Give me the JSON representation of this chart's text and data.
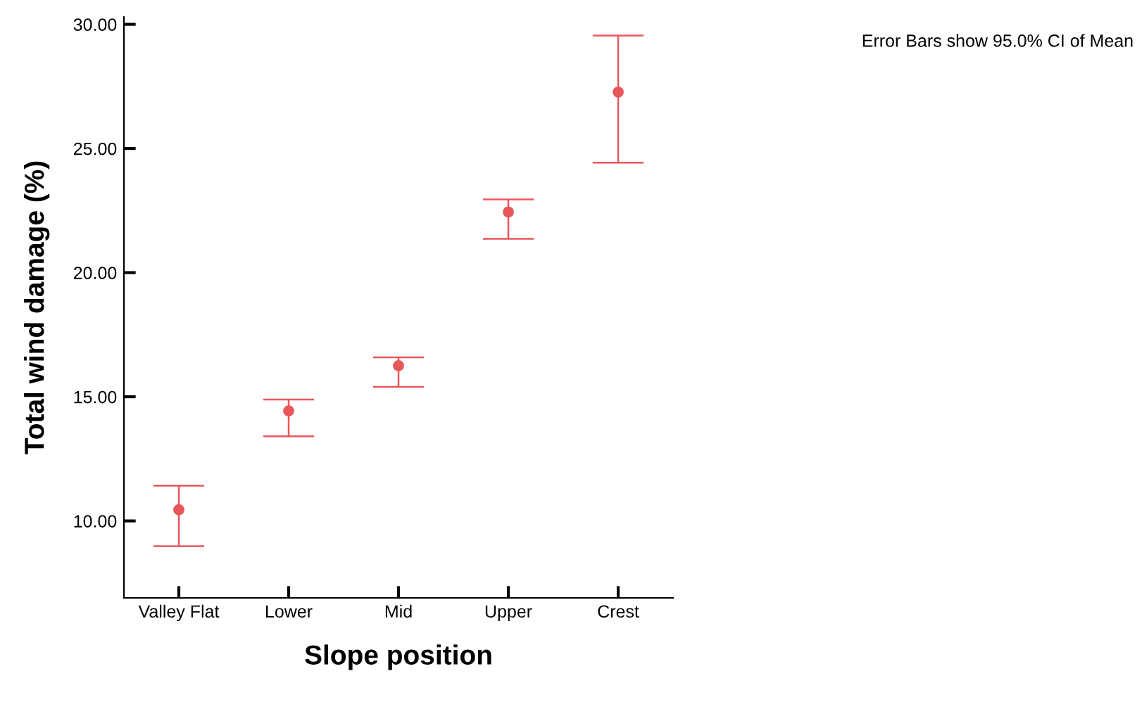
{
  "chart_data": {
    "type": "scatter",
    "xlabel": "Slope position",
    "ylabel": "Total wind damage (%)",
    "annotations": [
      "Error Bars show 95.0% CI of Mean"
    ],
    "categories": [
      "Valley Flat",
      "Lower",
      "Mid",
      "Upper",
      "Crest"
    ],
    "series": [
      {
        "color": "#e8575a",
        "values": [
          10.45,
          14.43,
          16.25,
          22.44,
          27.27
        ],
        "errors": [
          [
            8.98,
            11.42
          ],
          [
            13.41,
            14.89
          ],
          [
            15.4,
            16.59
          ],
          [
            21.36,
            22.95
          ],
          [
            24.43,
            29.55
          ]
        ]
      }
    ],
    "ylim": [
      6.9,
      30.3
    ],
    "yticks": [
      {
        "value": 10,
        "label": "10.00"
      },
      {
        "value": 15,
        "label": "15.00"
      },
      {
        "value": 20,
        "label": "20.00"
      },
      {
        "value": 25,
        "label": "25.00"
      },
      {
        "value": 30,
        "label": "30.00"
      }
    ],
    "grid": false,
    "legend": false,
    "marker": "circle"
  }
}
